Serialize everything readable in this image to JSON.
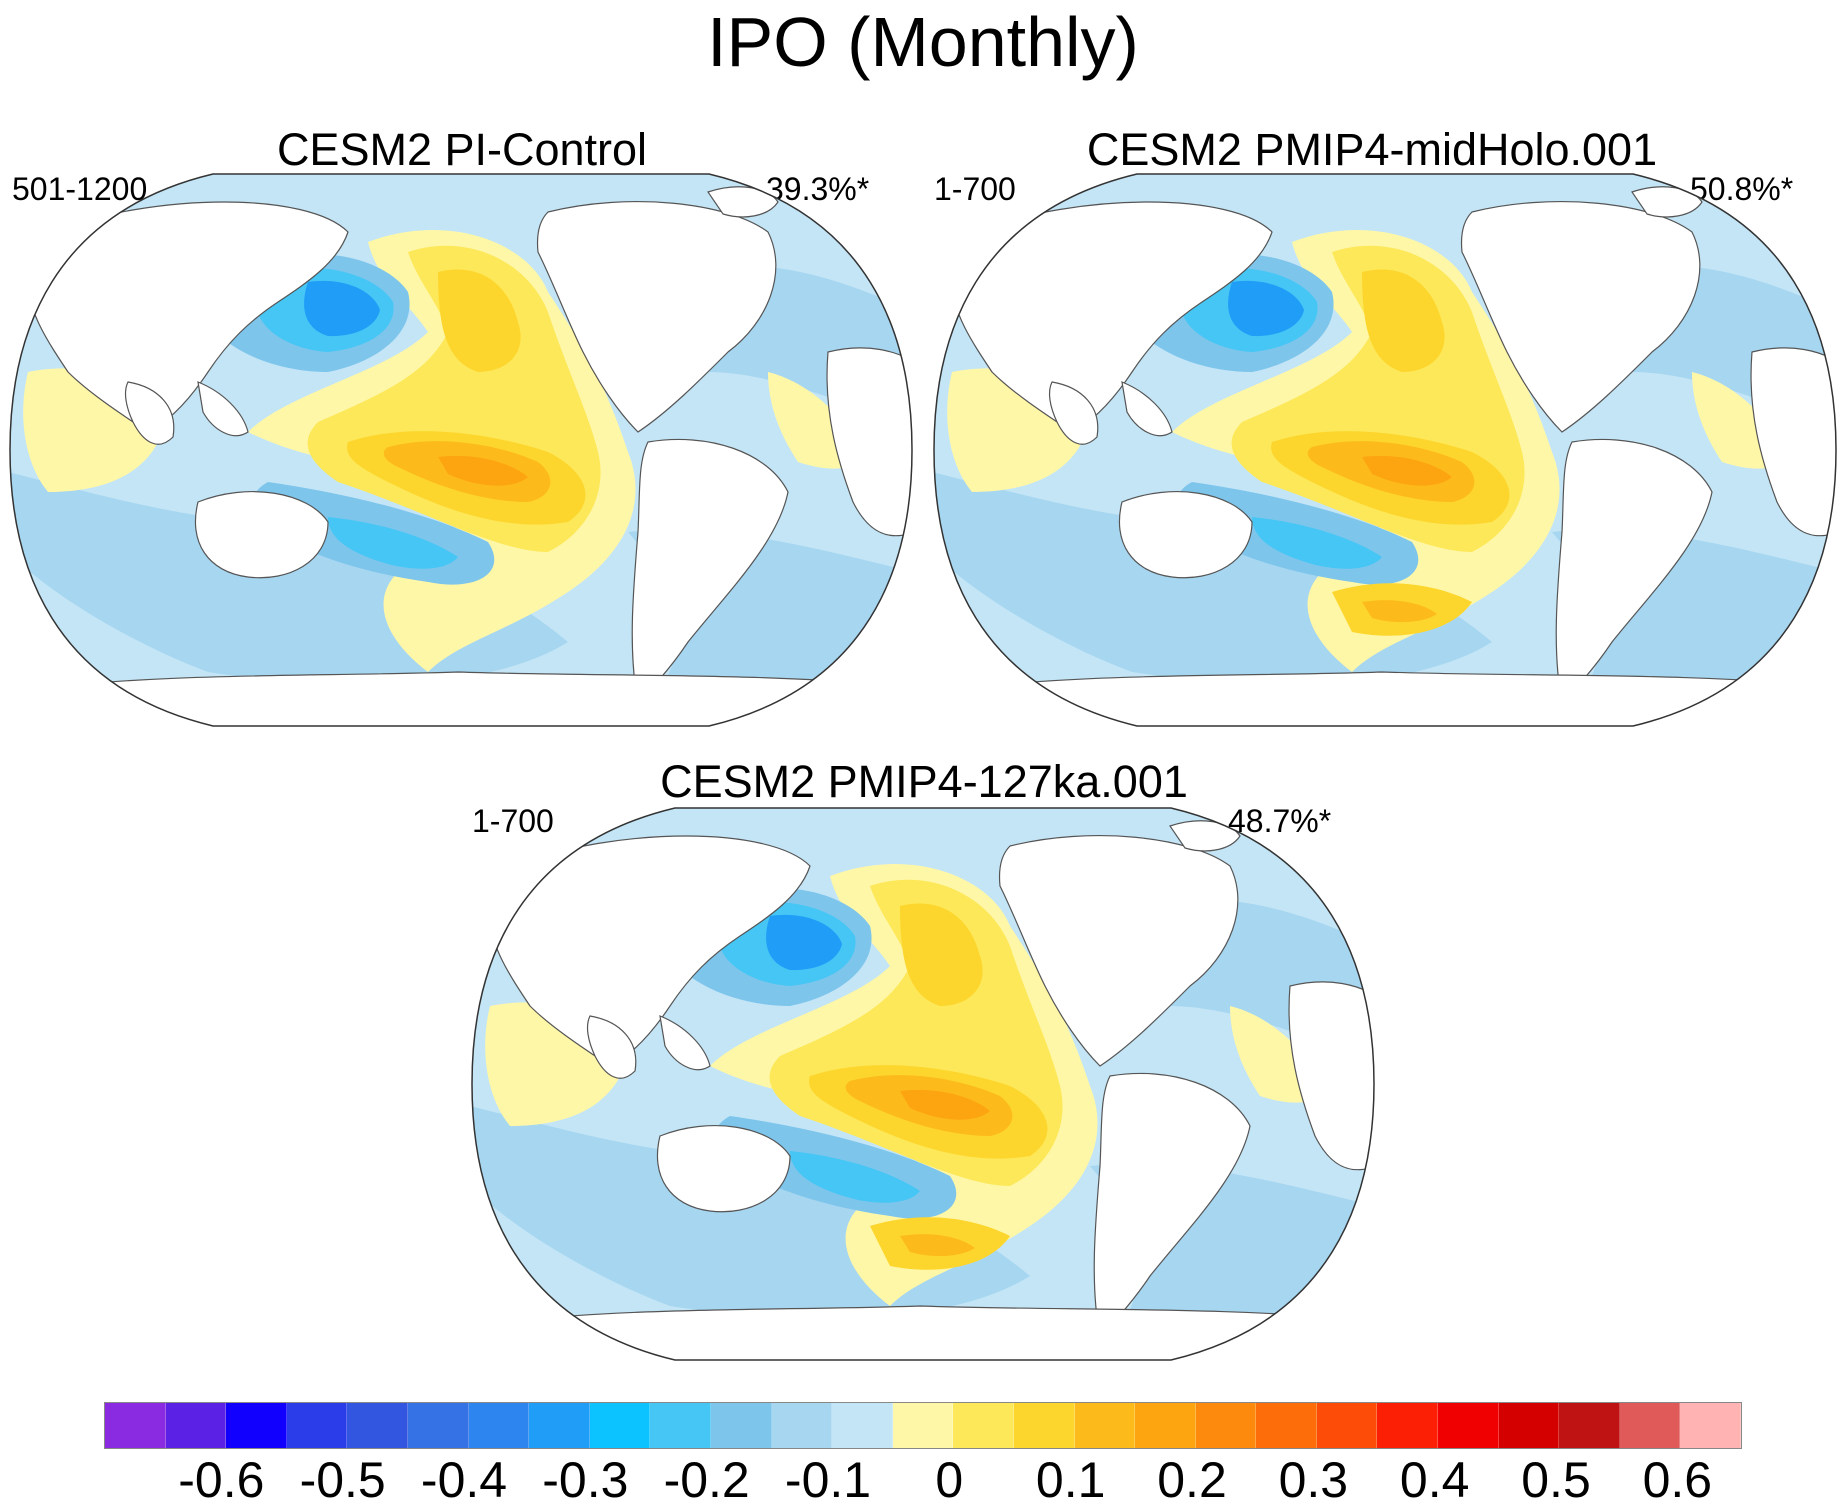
{
  "figure": {
    "title": "IPO (Monthly)"
  },
  "panels": [
    {
      "title": "CESM2 PI-Control",
      "period": "501-1200",
      "variance": "39.3%*"
    },
    {
      "title": "CESM2 PMIP4-midHolo.001",
      "period": "1-700",
      "variance": "50.8%*"
    },
    {
      "title": "CESM2 PMIP4-127ka.001",
      "period": "1-700",
      "variance": "48.7%*"
    }
  ],
  "colorbar": {
    "colors": [
      "#8a2be2",
      "#5b22e6",
      "#1200ff",
      "#2a3de8",
      "#3356e0",
      "#3472e6",
      "#2d86f0",
      "#1f9df7",
      "#0cc3ff",
      "#45c6f5",
      "#7ec5ec",
      "#a7d6f0",
      "#c3e5f6",
      "#fff7a8",
      "#fde85a",
      "#fdd62d",
      "#fdbb1b",
      "#fda510",
      "#fd8a0d",
      "#fd6e0a",
      "#fd4c08",
      "#fd1e06",
      "#f00000",
      "#d40000",
      "#bf1313",
      "#e05a5a",
      "#ffb3b3"
    ],
    "tick_labels": [
      "-0.6",
      "-0.5",
      "-0.4",
      "-0.3",
      "-0.2",
      "-0.1",
      "0",
      "0.1",
      "0.2",
      "0.3",
      "0.4",
      "0.5",
      "0.6"
    ]
  },
  "colors": {
    "ocean_base": "#c3e5f6",
    "neutral_blue": "#a7d6f0",
    "light_yellow": "#fff7a8",
    "yellow": "#fde85a",
    "orange_light": "#fdd62d",
    "orange": "#fdbb1b",
    "orange_dark": "#fda510",
    "blue_mid": "#7ec5ec",
    "blue": "#45c6f5",
    "blue_strong": "#1f9df7",
    "blue_deep": "#1200ff",
    "land": "#ffffff",
    "coast": "#555555"
  }
}
